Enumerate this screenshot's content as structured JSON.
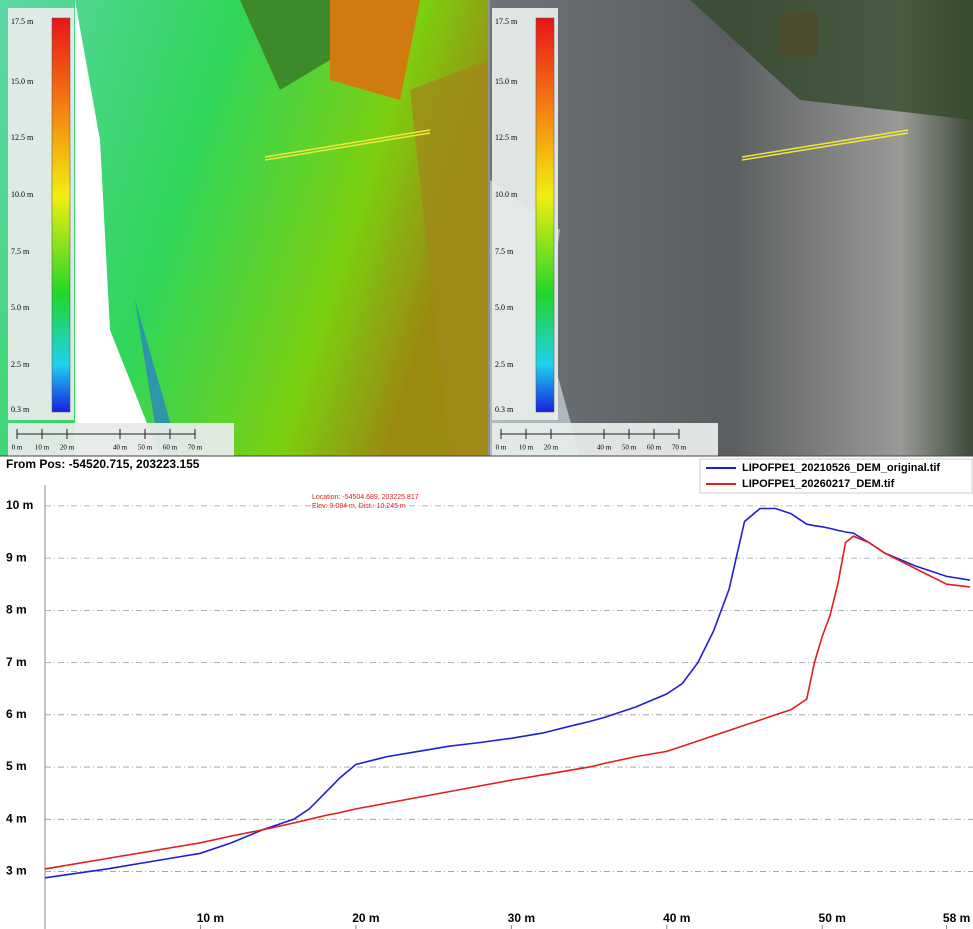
{
  "panels": [
    {
      "colorbar_labels": [
        "17.5 m",
        "15.0 m",
        "12.5 m",
        "10.0 m",
        "7.5 m",
        "5.0 m",
        "2.5 m",
        "0.3 m"
      ],
      "scalebar_labels": [
        "0 m",
        "10 m",
        "20 m",
        "40 m",
        "50 m",
        "60 m",
        "70 m"
      ]
    },
    {
      "colorbar_labels": [
        "17.5 m",
        "15.0 m",
        "12.5 m",
        "10.0 m",
        "7.5 m",
        "5.0 m",
        "2.5 m",
        "0.3 m"
      ],
      "scalebar_labels": [
        "0 m",
        "10 m",
        "20 m",
        "40 m",
        "50 m",
        "60 m",
        "70 m"
      ]
    }
  ],
  "chart_data": {
    "type": "line",
    "subtitle": "From Pos: -54520.715, 203223.155",
    "annotations": [
      "Location: -54504.689, 203225.817",
      "Elev: 9.084 m, Dist.: 10.245 m"
    ],
    "x": [
      0,
      4,
      8,
      10,
      12,
      14,
      16,
      17,
      18,
      19,
      20,
      22,
      24,
      26,
      28,
      30,
      32,
      34,
      35,
      36,
      38,
      40,
      41,
      42,
      43,
      44,
      45,
      46,
      47,
      48,
      49,
      49.5,
      50,
      50.5,
      51,
      51.5,
      52,
      53,
      54,
      56,
      58,
      59.5
    ],
    "series": [
      {
        "name": "LIPOFPE1_20210526_DEM_original.tif",
        "color": "#1f1fd6",
        "values": [
          2.88,
          3.05,
          3.25,
          3.35,
          3.55,
          3.8,
          4.0,
          4.2,
          4.5,
          4.8,
          5.05,
          5.2,
          5.3,
          5.4,
          5.47,
          5.55,
          5.65,
          5.8,
          5.87,
          5.95,
          6.15,
          6.4,
          6.6,
          7.0,
          7.6,
          8.4,
          9.7,
          9.95,
          9.95,
          9.85,
          9.65,
          9.62,
          9.6,
          9.57,
          9.53,
          9.5,
          9.48,
          9.3,
          9.1,
          8.85,
          8.65,
          8.58
        ]
      },
      {
        "name": "LIPOFPE1_20260217_DEM.tif",
        "color": "#e01f1f",
        "values": [
          3.05,
          3.25,
          3.45,
          3.55,
          3.68,
          3.8,
          3.93,
          4.0,
          4.07,
          4.13,
          4.2,
          4.31,
          4.42,
          4.53,
          4.64,
          4.75,
          4.85,
          4.95,
          5.0,
          5.07,
          5.2,
          5.3,
          5.4,
          5.5,
          5.6,
          5.7,
          5.8,
          5.9,
          6.0,
          6.1,
          6.3,
          7.0,
          7.5,
          7.9,
          8.5,
          9.3,
          9.42,
          9.3,
          9.1,
          8.8,
          8.5,
          8.45
        ]
      }
    ],
    "xlim": [
      0,
      59.7
    ],
    "ylim": [
      1.9,
      10.4
    ],
    "xticks": [
      {
        "value": 10,
        "label": "10 m"
      },
      {
        "value": 20,
        "label": "20 m"
      },
      {
        "value": 30,
        "label": "30 m"
      },
      {
        "value": 40,
        "label": "40 m"
      },
      {
        "value": 50,
        "label": "50 m"
      },
      {
        "value": 58,
        "label": "58 m"
      }
    ],
    "yticks": [
      {
        "value": 3,
        "label": "3 m"
      },
      {
        "value": 4,
        "label": "4 m"
      },
      {
        "value": 5,
        "label": "5 m"
      },
      {
        "value": 6,
        "label": "6 m"
      },
      {
        "value": 7,
        "label": "7 m"
      },
      {
        "value": 8,
        "label": "8 m"
      },
      {
        "value": 9,
        "label": "9 m"
      },
      {
        "value": 10,
        "label": "10 m"
      }
    ],
    "grid": true
  }
}
